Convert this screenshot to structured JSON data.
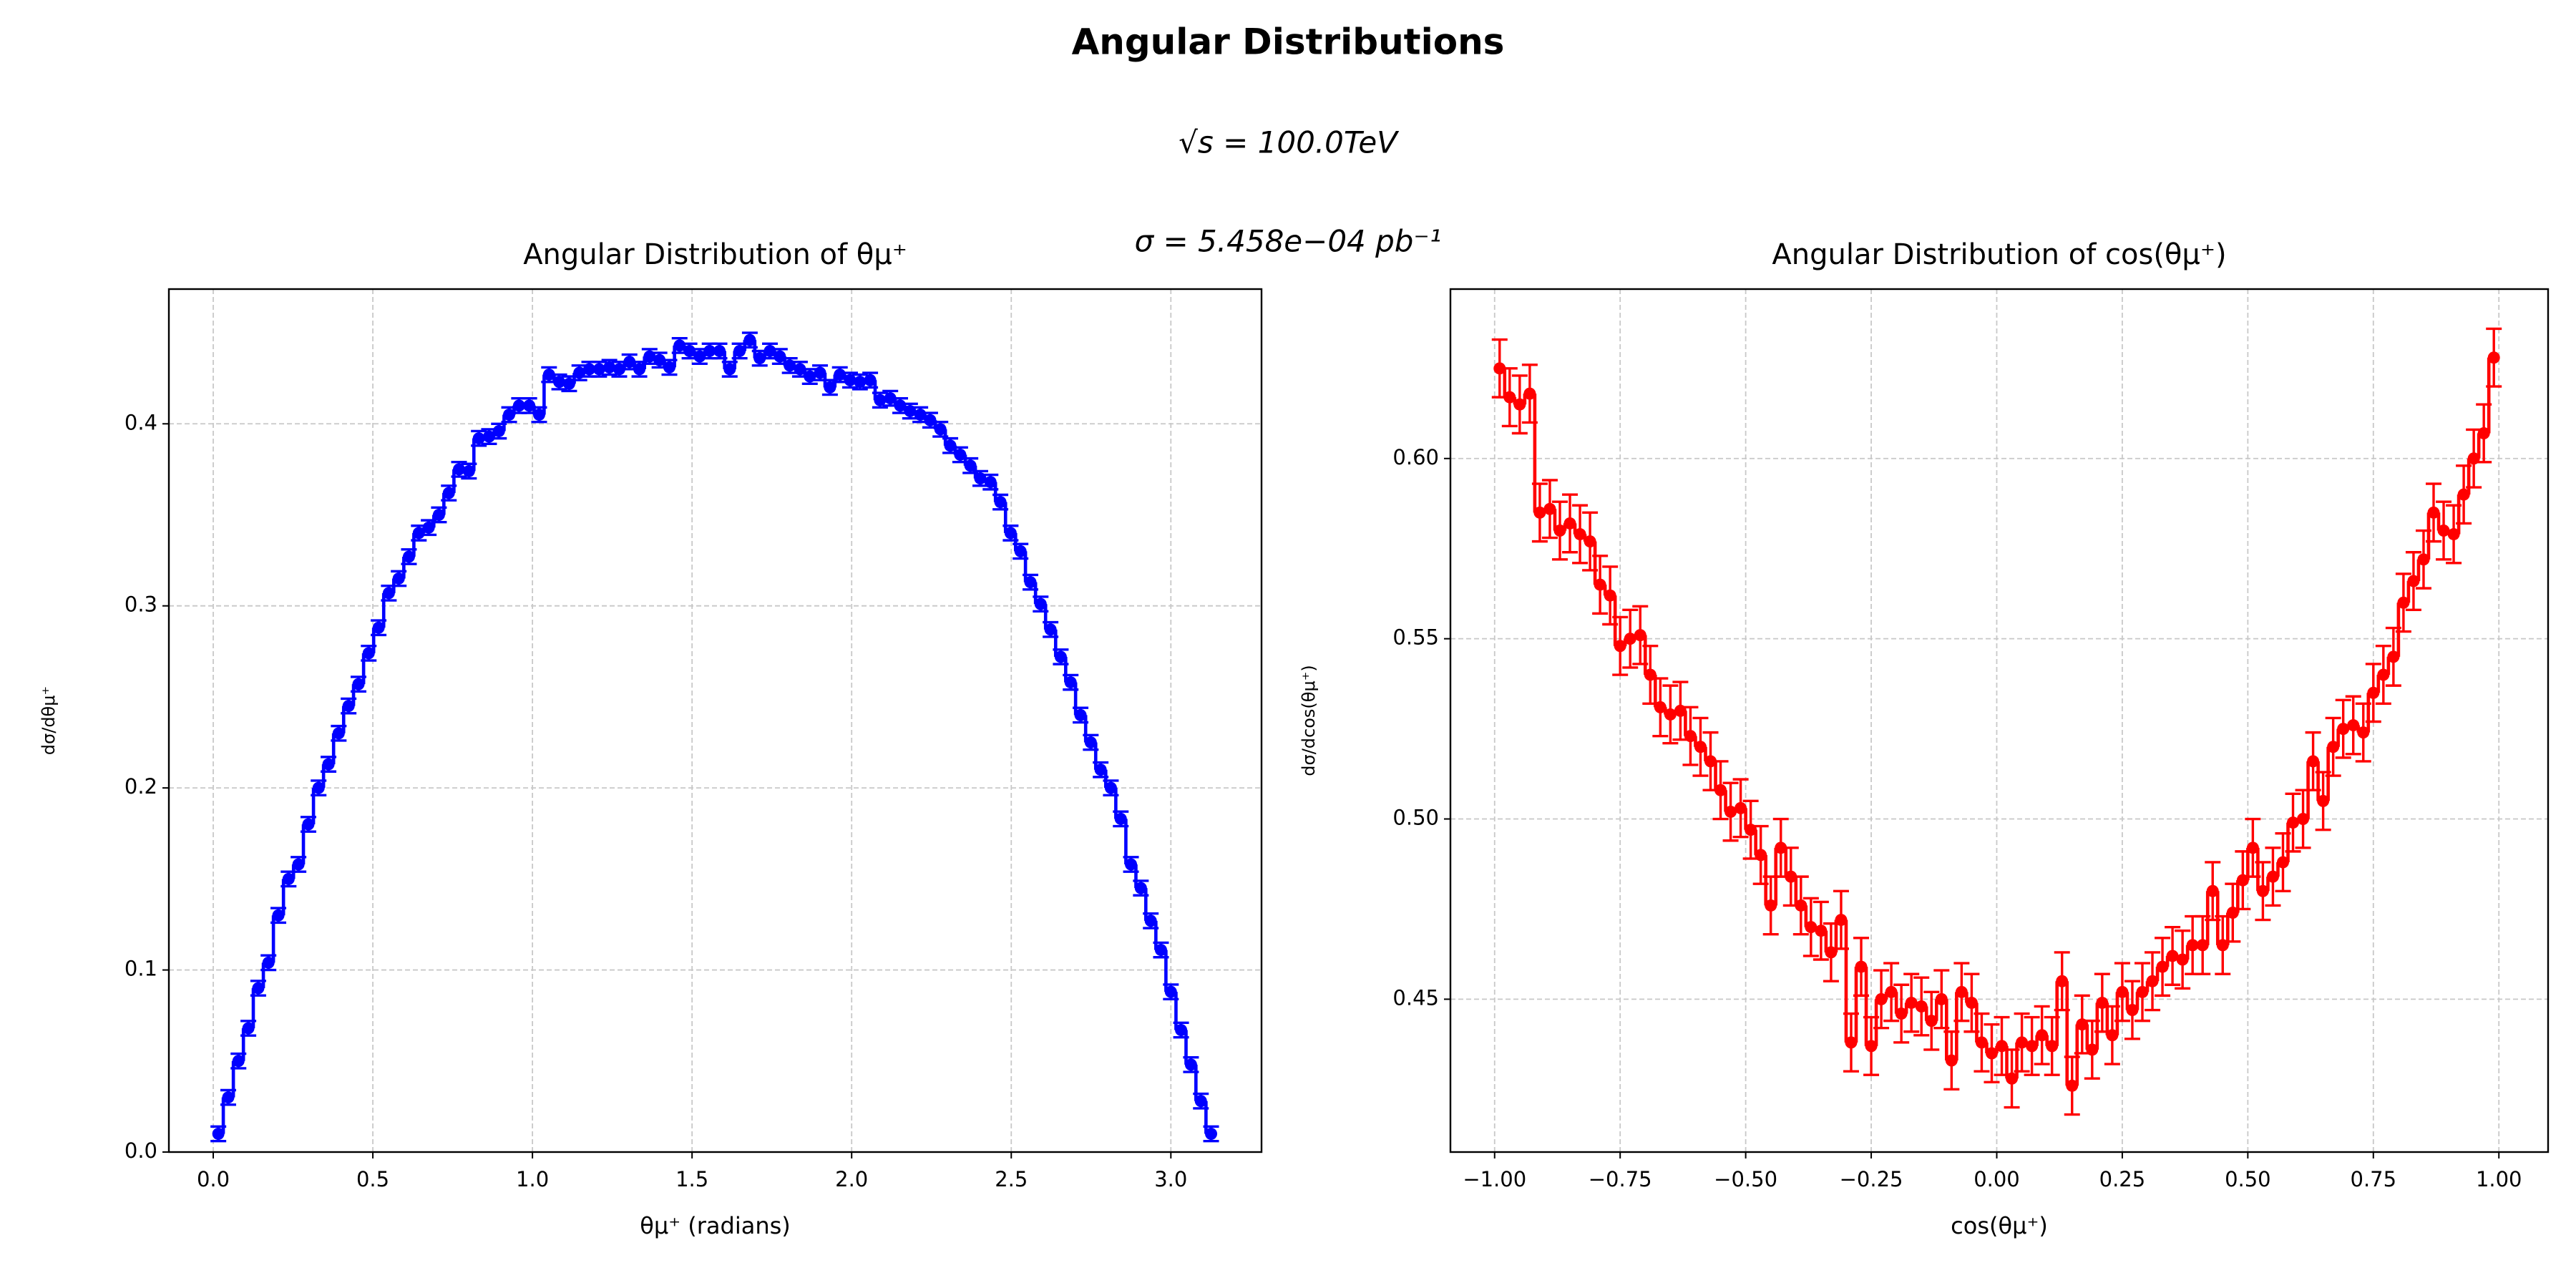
{
  "title": "Angular Distributions",
  "annotations": [
    "√s = 100.0TeV",
    "σ = 5.458e−04 pb⁻¹"
  ],
  "chart_data": [
    {
      "type": "line",
      "drawstyle": "steps-mid",
      "title": "Angular Distribution of θμ⁺",
      "x_label": "θμ⁺ (radians)",
      "y_label": "dσ/dθμ⁺",
      "color": "#0000ff",
      "grid": true,
      "yerr": 0.004,
      "xlim": [
        -0.139,
        3.284
      ],
      "ylim": [
        0,
        0.474
      ],
      "xticks": [
        {
          "value": 0,
          "label": "0.0"
        },
        0.5,
        {
          "value": 1,
          "label": "1.0"
        },
        1.5,
        {
          "value": 2,
          "label": "2.0"
        },
        2.5,
        {
          "value": 3,
          "label": "3.0"
        }
      ],
      "yticks": [
        {
          "value": 0,
          "label": "0.0"
        },
        0.1,
        0.2,
        0.3,
        0.4
      ],
      "x": [
        0.016,
        0.047,
        0.079,
        0.11,
        0.141,
        0.173,
        0.204,
        0.236,
        0.267,
        0.298,
        0.33,
        0.361,
        0.393,
        0.424,
        0.455,
        0.487,
        0.518,
        0.55,
        0.581,
        0.613,
        0.644,
        0.675,
        0.707,
        0.738,
        0.77,
        0.801,
        0.832,
        0.864,
        0.895,
        0.927,
        0.958,
        0.99,
        1.021,
        1.052,
        1.084,
        1.115,
        1.147,
        1.178,
        1.209,
        1.241,
        1.272,
        1.304,
        1.335,
        1.367,
        1.398,
        1.429,
        1.461,
        1.492,
        1.524,
        1.555,
        1.586,
        1.618,
        1.649,
        1.681,
        1.712,
        1.744,
        1.775,
        1.806,
        1.838,
        1.869,
        1.901,
        1.932,
        1.963,
        1.995,
        2.026,
        2.058,
        2.089,
        2.121,
        2.152,
        2.183,
        2.215,
        2.246,
        2.278,
        2.309,
        2.34,
        2.372,
        2.403,
        2.435,
        2.466,
        2.498,
        2.529,
        2.56,
        2.592,
        2.623,
        2.655,
        2.686,
        2.717,
        2.749,
        2.78,
        2.812,
        2.843,
        2.875,
        2.906,
        2.937,
        2.969,
        3.0,
        3.032,
        3.063,
        3.094,
        3.126
      ],
      "values": [
        0.01,
        0.03,
        0.05,
        0.068,
        0.09,
        0.104,
        0.13,
        0.15,
        0.158,
        0.18,
        0.2,
        0.213,
        0.23,
        0.245,
        0.257,
        0.274,
        0.288,
        0.307,
        0.315,
        0.327,
        0.34,
        0.343,
        0.35,
        0.362,
        0.375,
        0.374,
        0.392,
        0.393,
        0.396,
        0.405,
        0.41,
        0.41,
        0.405,
        0.427,
        0.423,
        0.422,
        0.428,
        0.43,
        0.43,
        0.431,
        0.43,
        0.434,
        0.43,
        0.437,
        0.435,
        0.431,
        0.443,
        0.44,
        0.437,
        0.44,
        0.44,
        0.43,
        0.44,
        0.446,
        0.436,
        0.44,
        0.437,
        0.432,
        0.43,
        0.426,
        0.428,
        0.42,
        0.427,
        0.424,
        0.423,
        0.424,
        0.413,
        0.414,
        0.41,
        0.407,
        0.405,
        0.402,
        0.397,
        0.388,
        0.383,
        0.377,
        0.37,
        0.368,
        0.357,
        0.34,
        0.33,
        0.313,
        0.301,
        0.287,
        0.272,
        0.258,
        0.24,
        0.225,
        0.21,
        0.2,
        0.183,
        0.158,
        0.145,
        0.127,
        0.111,
        0.088,
        0.067,
        0.048,
        0.028,
        0.01
      ]
    },
    {
      "type": "line",
      "drawstyle": "steps-mid",
      "title": "Angular Distribution of cos(θμ⁺)",
      "x_label": "cos(θμ⁺)",
      "y_label": "dσ/dcos(θμ⁺)",
      "color": "#ff0000",
      "grid": true,
      "yerr": 0.008,
      "xlim": [
        -1.088,
        1.098
      ],
      "ylim": [
        0.4076,
        0.647
      ],
      "xticks": [
        {
          "value": -1,
          "label": "−1.00"
        },
        {
          "value": -0.75,
          "label": "−0.75"
        },
        {
          "value": -0.5,
          "label": "−0.50"
        },
        {
          "value": -0.25,
          "label": "−0.25"
        },
        {
          "value": 0,
          "label": "0.00"
        },
        0.25,
        {
          "value": 0.5,
          "label": "0.50"
        },
        0.75,
        {
          "value": 1,
          "label": "1.00"
        }
      ],
      "yticks": [
        0.45,
        {
          "value": 0.5,
          "label": "0.50"
        },
        0.55,
        {
          "value": 0.6,
          "label": "0.60"
        }
      ],
      "x": [
        -0.99,
        -0.97,
        -0.95,
        -0.93,
        -0.91,
        -0.89,
        -0.87,
        -0.85,
        -0.83,
        -0.81,
        -0.79,
        -0.77,
        -0.75,
        -0.73,
        -0.71,
        -0.69,
        -0.67,
        -0.65,
        -0.63,
        -0.61,
        -0.59,
        -0.57,
        -0.55,
        -0.53,
        -0.51,
        -0.49,
        -0.47,
        -0.45,
        -0.43,
        -0.41,
        -0.39,
        -0.37,
        -0.35,
        -0.33,
        -0.31,
        -0.29,
        -0.27,
        -0.25,
        -0.23,
        -0.21,
        -0.19,
        -0.17,
        -0.15,
        -0.13,
        -0.11,
        -0.09,
        -0.07,
        -0.05,
        -0.03,
        -0.01,
        0.01,
        0.03,
        0.05,
        0.07,
        0.09,
        0.11,
        0.13,
        0.15,
        0.17,
        0.19,
        0.21,
        0.23,
        0.25,
        0.27,
        0.29,
        0.31,
        0.33,
        0.35,
        0.37,
        0.39,
        0.41,
        0.43,
        0.45,
        0.47,
        0.49,
        0.51,
        0.53,
        0.55,
        0.57,
        0.59,
        0.61,
        0.63,
        0.65,
        0.67,
        0.69,
        0.71,
        0.73,
        0.75,
        0.77,
        0.79,
        0.81,
        0.83,
        0.85,
        0.87,
        0.89,
        0.91,
        0.93,
        0.95,
        0.97,
        0.99
      ],
      "values": [
        0.625,
        0.617,
        0.615,
        0.618,
        0.585,
        0.586,
        0.58,
        0.582,
        0.579,
        0.577,
        0.565,
        0.562,
        0.548,
        0.55,
        0.551,
        0.54,
        0.531,
        0.529,
        0.53,
        0.523,
        0.52,
        0.516,
        0.508,
        0.502,
        0.503,
        0.497,
        0.49,
        0.476,
        0.492,
        0.484,
        0.476,
        0.47,
        0.469,
        0.463,
        0.472,
        0.438,
        0.459,
        0.437,
        0.45,
        0.452,
        0.446,
        0.449,
        0.448,
        0.444,
        0.45,
        0.433,
        0.452,
        0.449,
        0.438,
        0.435,
        0.437,
        0.428,
        0.438,
        0.437,
        0.44,
        0.437,
        0.455,
        0.426,
        0.443,
        0.436,
        0.449,
        0.44,
        0.452,
        0.447,
        0.452,
        0.455,
        0.459,
        0.462,
        0.461,
        0.465,
        0.465,
        0.48,
        0.465,
        0.474,
        0.483,
        0.492,
        0.48,
        0.484,
        0.488,
        0.499,
        0.5,
        0.516,
        0.505,
        0.52,
        0.525,
        0.526,
        0.524,
        0.535,
        0.54,
        0.545,
        0.56,
        0.566,
        0.572,
        0.585,
        0.58,
        0.579,
        0.59,
        0.6,
        0.607,
        0.628
      ]
    }
  ]
}
